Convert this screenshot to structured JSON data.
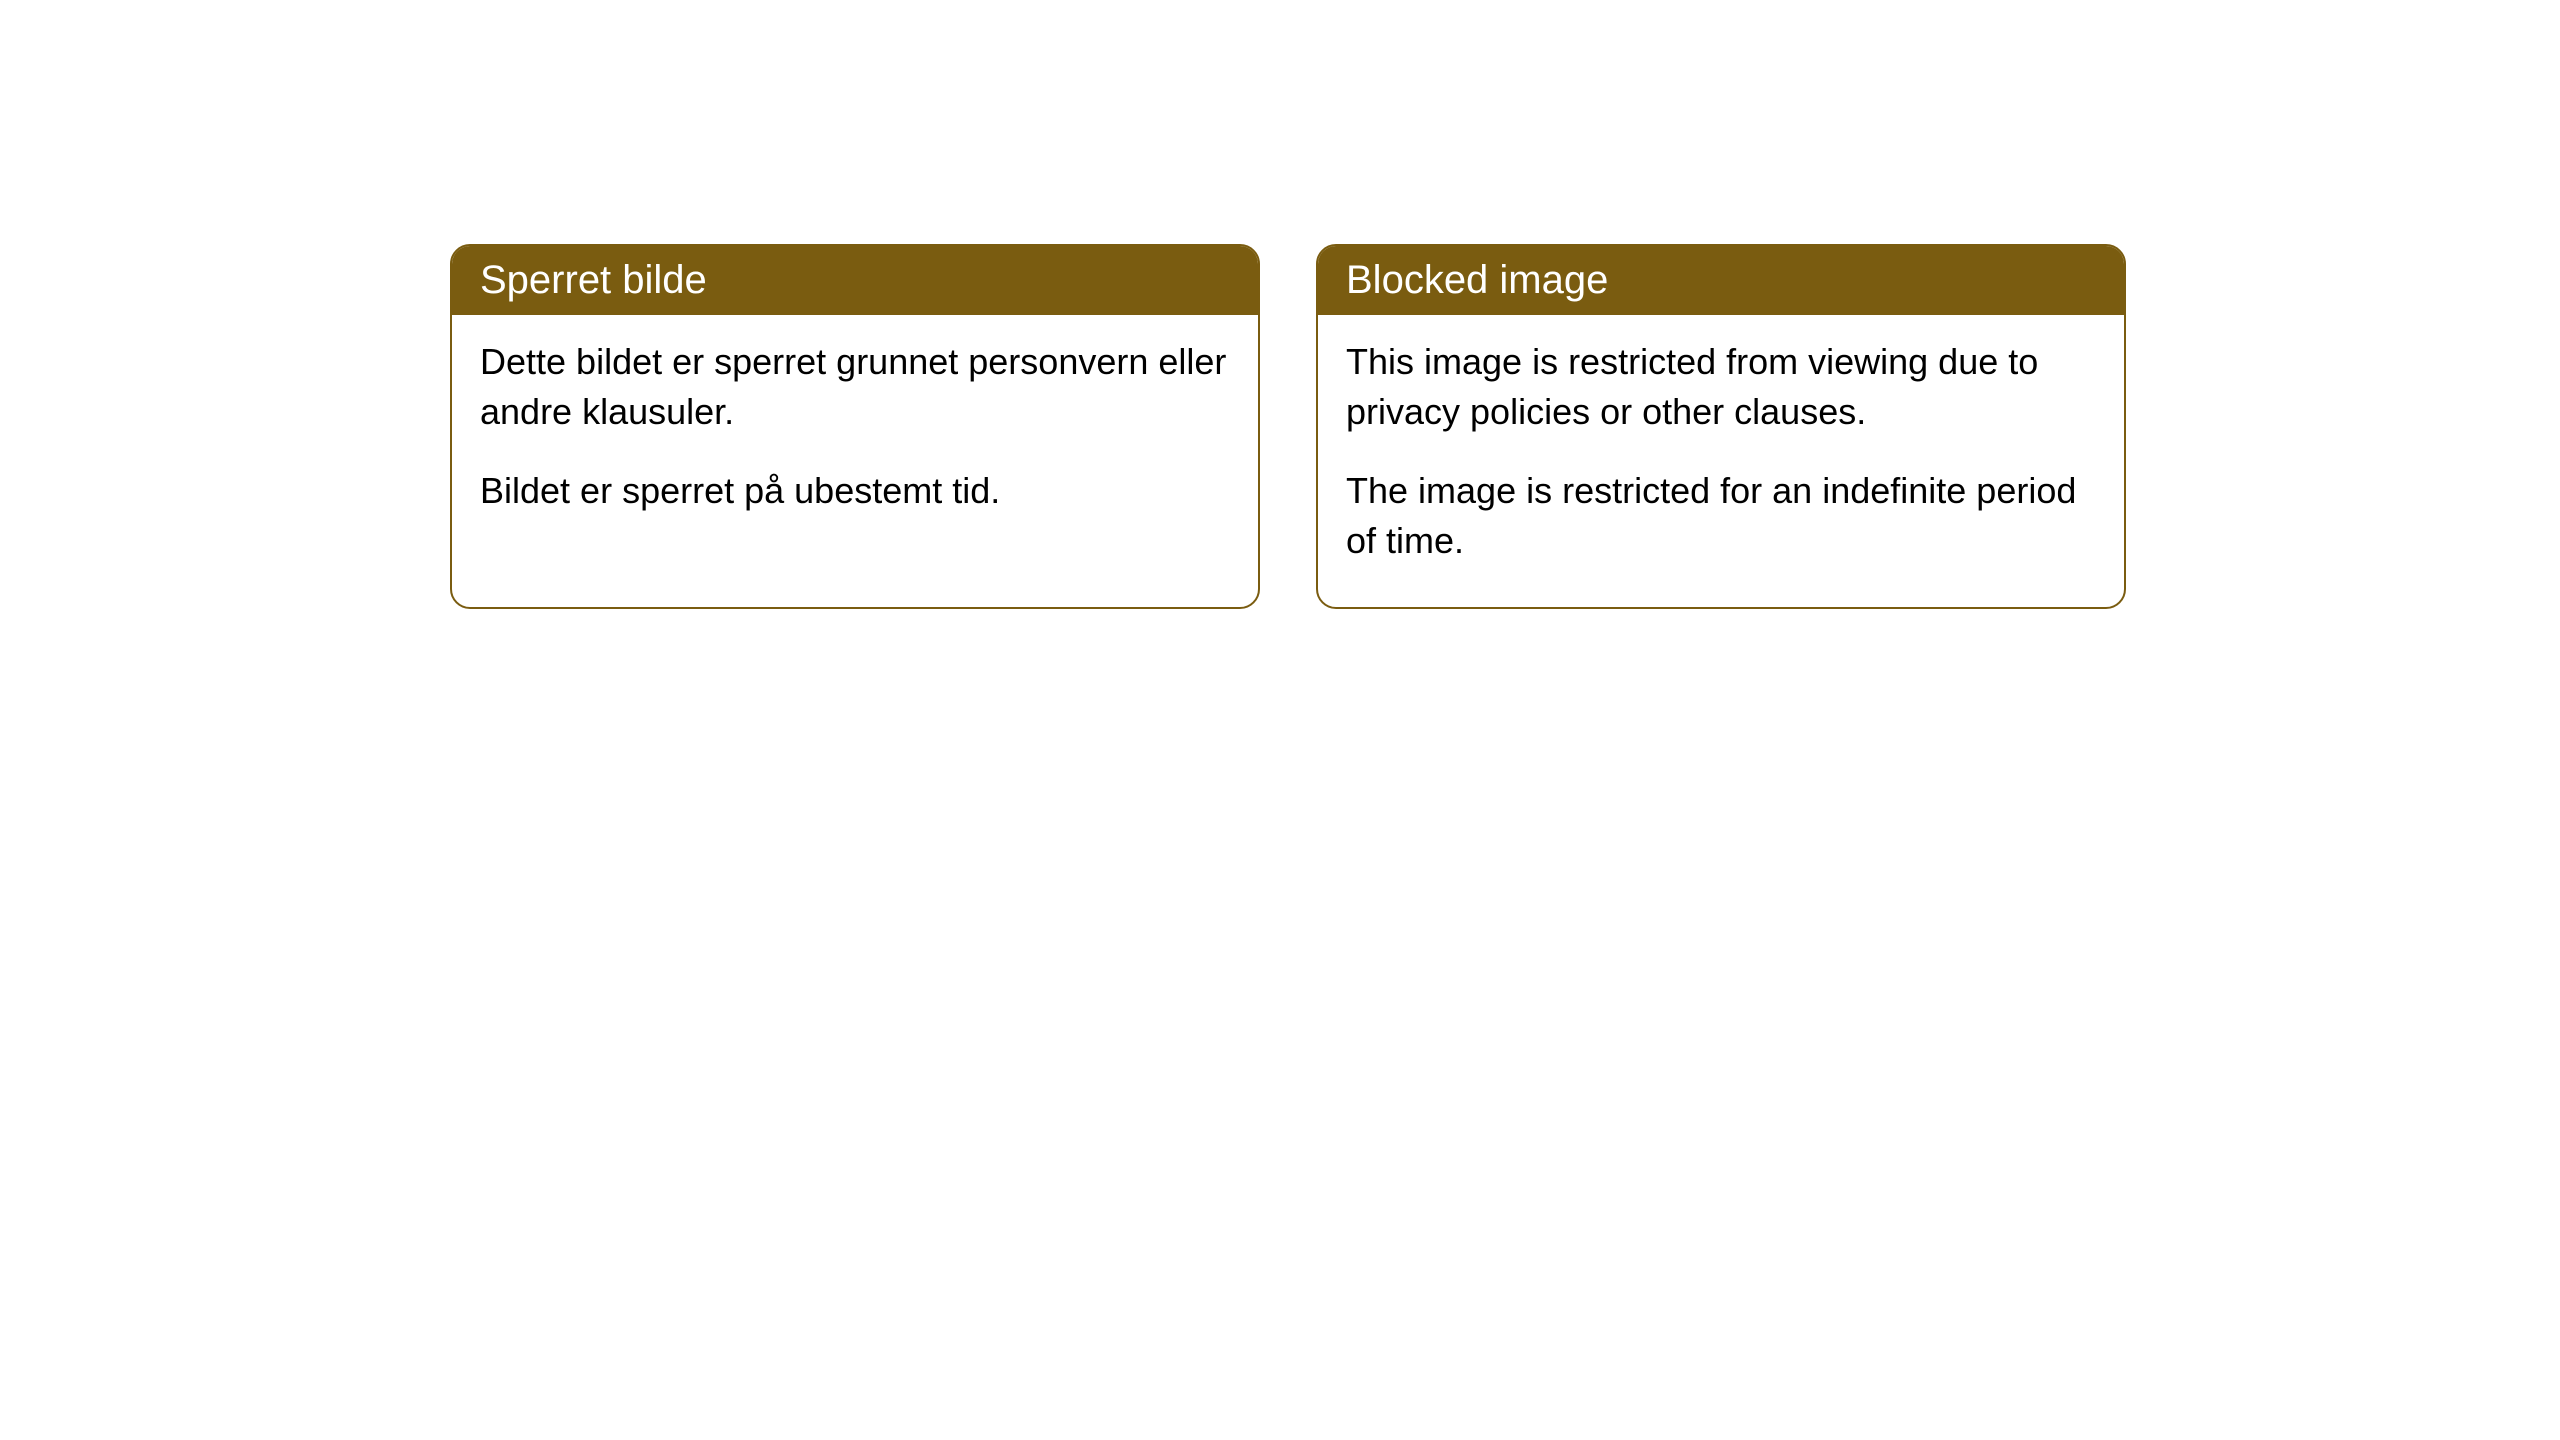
{
  "cards": [
    {
      "title": "Sperret bilde",
      "paragraph1": "Dette bildet er sperret grunnet personvern eller andre klausuler.",
      "paragraph2": "Bildet er sperret på ubestemt tid."
    },
    {
      "title": "Blocked image",
      "paragraph1": "This image is restricted from viewing due to privacy policies or other clauses.",
      "paragraph2": "The image is restricted for an indefinite period of time."
    }
  ],
  "styling": {
    "header_bg_color": "#7a5c10",
    "header_text_color": "#ffffff",
    "border_color": "#7a5c10",
    "body_bg_color": "#ffffff",
    "body_text_color": "#000000",
    "border_radius": 20,
    "title_fontsize": 40,
    "body_fontsize": 36
  }
}
